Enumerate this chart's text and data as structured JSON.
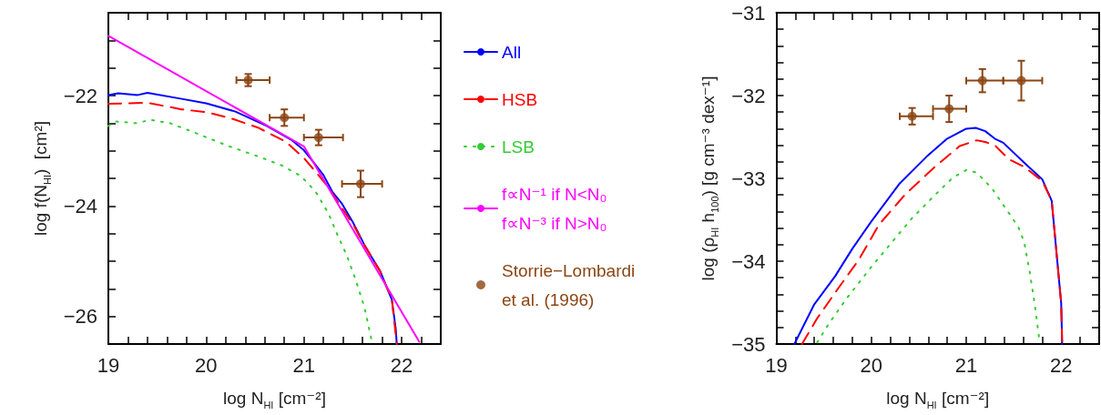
{
  "chart_data": [
    {
      "type": "line",
      "xlabel": "log N$_{HI}$ [cm⁻²]",
      "ylabel": "log f(N$_{HI}$)  [cm²]",
      "xlim": [
        19,
        22.4
      ],
      "ylim": [
        -26.5,
        -20.5
      ],
      "xticks": [
        19,
        {
          "value": 19.2,
          "label": null
        },
        {
          "value": 19.4,
          "label": null
        },
        {
          "value": 19.6,
          "label": null
        },
        {
          "value": 19.8,
          "label": null
        },
        20,
        {
          "value": 20.2,
          "label": null
        },
        {
          "value": 20.4,
          "label": null
        },
        {
          "value": 20.6,
          "label": null
        },
        {
          "value": 20.8,
          "label": null
        },
        21,
        {
          "value": 21.2,
          "label": null
        },
        {
          "value": 21.4,
          "label": null
        },
        {
          "value": 21.6,
          "label": null
        },
        {
          "value": 21.8,
          "label": null
        },
        22,
        {
          "value": 22.2,
          "label": null
        }
      ],
      "yticks": [
        -26,
        {
          "value": -25.5,
          "label": null
        },
        {
          "value": -25,
          "label": null
        },
        {
          "value": -24.5,
          "label": null
        },
        -24,
        {
          "value": -23.5,
          "label": null
        },
        {
          "value": -23,
          "label": null
        },
        {
          "value": -22.5,
          "label": null
        },
        -22,
        {
          "value": -21.5,
          "label": null
        },
        {
          "value": -21,
          "label": null
        }
      ],
      "grid": false,
      "legend": "right",
      "series": [
        {
          "name": "All",
          "color": "#0000ff",
          "line_style": "solid",
          "x": [
            19,
            19.1,
            19.3,
            19.4,
            19.75,
            20,
            20.3,
            20.62,
            20.87,
            21,
            21.09,
            21.2,
            21.29,
            21.39,
            21.5,
            21.62,
            21.78,
            21.9,
            21.94,
            21.95
          ],
          "values": [
            -21.99,
            -21.96,
            -21.99,
            -21.95,
            -22.06,
            -22.14,
            -22.29,
            -22.55,
            -22.8,
            -22.99,
            -23.19,
            -23.44,
            -23.74,
            -23.96,
            -24.29,
            -24.71,
            -25.18,
            -25.7,
            -26.23,
            -26.5
          ]
        },
        {
          "name": "HSB",
          "color": "#ff0000",
          "line_style": "dashed",
          "x": [
            19,
            19.4,
            19.75,
            20,
            20.25,
            20.53,
            20.81,
            21,
            21.12,
            21.25,
            21.37,
            21.51,
            21.59,
            21.78,
            21.9,
            21.95
          ],
          "values": [
            -22.15,
            -22.13,
            -22.25,
            -22.3,
            -22.41,
            -22.58,
            -22.83,
            -23.13,
            -23.38,
            -23.66,
            -23.99,
            -24.35,
            -24.62,
            -25.18,
            -25.7,
            -26.5
          ]
        },
        {
          "name": "LSB",
          "color": "#33cc33",
          "line_style": "dotted",
          "x": [
            19,
            19.07,
            19.29,
            19.43,
            19.63,
            19.91,
            20.22,
            20.53,
            20.78,
            20.97,
            21.12,
            21.25,
            21.34,
            21.44,
            21.53,
            21.62,
            21.68,
            21.7
          ],
          "values": [
            -22.55,
            -22.47,
            -22.5,
            -22.44,
            -22.5,
            -22.69,
            -22.91,
            -23.1,
            -23.27,
            -23.46,
            -23.74,
            -24.13,
            -24.51,
            -24.9,
            -25.34,
            -25.84,
            -26.33,
            -26.5
          ]
        },
        {
          "name": "f∝N⁻¹ if N<N₀\nf∝N⁻³ if N>N₀",
          "color": "#ff00ff",
          "line_style": "solid",
          "x": [
            19,
            21,
            22.18
          ],
          "values": [
            -20.92,
            -22.92,
            -26.46
          ]
        },
        {
          "name": "Storrie−Lombardi\net al. (1996)",
          "type": "scatter",
          "marker": "circle",
          "color": "#8b4513",
          "x": [
            20.43,
            20.8,
            21.15,
            21.58
          ],
          "values": [
            -21.72,
            -22.4,
            -22.76,
            -23.6
          ],
          "errors": [
            0.11,
            0.15,
            0.14,
            0.24
          ],
          "xerrors": [
            [
              20.31,
              20.65
            ],
            [
              20.65,
              21.0
            ],
            [
              21.0,
              21.4
            ],
            [
              21.39,
              21.8
            ]
          ]
        }
      ]
    },
    {
      "type": "line",
      "xlabel": "log N$_{HI}$ [cm⁻²]",
      "ylabel": "log (ρ$_{HI}$ h$_{100}$) [g cm⁻³ dex⁻¹]",
      "xlim": [
        19,
        22.4
      ],
      "ylim": [
        -35,
        -31
      ],
      "xticks": [
        19,
        {
          "value": 19.2,
          "label": null
        },
        {
          "value": 19.4,
          "label": null
        },
        {
          "value": 19.6,
          "label": null
        },
        {
          "value": 19.8,
          "label": null
        },
        20,
        {
          "value": 20.2,
          "label": null
        },
        {
          "value": 20.4,
          "label": null
        },
        {
          "value": 20.6,
          "label": null
        },
        {
          "value": 20.8,
          "label": null
        },
        21,
        {
          "value": 21.2,
          "label": null
        },
        {
          "value": 21.4,
          "label": null
        },
        {
          "value": 21.6,
          "label": null
        },
        {
          "value": 21.8,
          "label": null
        },
        22,
        {
          "value": 22.2,
          "label": null
        }
      ],
      "yticks": [
        -35,
        {
          "value": -34.8,
          "label": null
        },
        {
          "value": -34.6,
          "label": null
        },
        {
          "value": -34.4,
          "label": null
        },
        {
          "value": -34.2,
          "label": null
        },
        -34,
        {
          "value": -33.8,
          "label": null
        },
        {
          "value": -33.6,
          "label": null
        },
        {
          "value": -33.4,
          "label": null
        },
        {
          "value": -33.2,
          "label": null
        },
        -33,
        {
          "value": -32.8,
          "label": null
        },
        {
          "value": -32.6,
          "label": null
        },
        {
          "value": -32.4,
          "label": null
        },
        {
          "value": -32.2,
          "label": null
        },
        -32,
        {
          "value": -31.8,
          "label": null
        },
        {
          "value": -31.6,
          "label": null
        },
        {
          "value": -31.4,
          "label": null
        },
        {
          "value": -31.2,
          "label": null
        },
        -31
      ],
      "grid": false,
      "series": [
        {
          "color": "#0000ff",
          "line_style": "solid",
          "x": [
            19.19,
            19.4,
            19.62,
            19.8,
            20,
            20.3,
            20.58,
            20.8,
            21,
            21.1,
            21.2,
            21.3,
            21.39,
            21.61,
            21.8,
            21.9,
            22.0,
            22.01
          ],
          "values": [
            -35,
            -34.52,
            -34.18,
            -33.85,
            -33.52,
            -33.06,
            -32.74,
            -32.52,
            -32.4,
            -32.39,
            -32.43,
            -32.52,
            -32.57,
            -32.81,
            -33.01,
            -33.27,
            -34.51,
            -35
          ]
        },
        {
          "color": "#ff0000",
          "line_style": "dashed",
          "x": [
            19.27,
            19.43,
            19.65,
            19.87,
            20.08,
            20.36,
            20.68,
            20.93,
            21.11,
            21.2,
            21.3,
            21.45,
            21.61,
            21.8,
            21.9,
            22.0,
            22.01
          ],
          "values": [
            -35,
            -34.69,
            -34.33,
            -33.98,
            -33.56,
            -33.19,
            -32.85,
            -32.61,
            -32.54,
            -32.56,
            -32.6,
            -32.77,
            -32.86,
            -33.03,
            -33.27,
            -34.51,
            -35
          ]
        },
        {
          "color": "#33cc33",
          "line_style": "dotted",
          "x": [
            19.43,
            19.55,
            19.74,
            20,
            20.21,
            20.43,
            20.68,
            20.86,
            21,
            21.11,
            21.27,
            21.42,
            21.55,
            21.61,
            21.67,
            21.72,
            21.77
          ],
          "values": [
            -34.98,
            -34.76,
            -34.45,
            -34.07,
            -33.78,
            -33.48,
            -33.19,
            -32.99,
            -32.9,
            -32.93,
            -33.12,
            -33.37,
            -33.59,
            -33.77,
            -34.14,
            -34.51,
            -34.95
          ]
        },
        {
          "type": "scatter",
          "marker": "circle",
          "color": "#8b4513",
          "x": [
            20.43,
            20.82,
            21.17,
            21.58
          ],
          "values": [
            -32.25,
            -32.16,
            -31.82,
            -31.82
          ],
          "errors": [
            0.1,
            0.16,
            0.14,
            0.24
          ],
          "xerrors": [
            [
              20.3,
              20.65
            ],
            [
              20.65,
              21.0
            ],
            [
              21.0,
              21.39
            ],
            [
              21.39,
              21.8
            ]
          ]
        }
      ]
    }
  ]
}
